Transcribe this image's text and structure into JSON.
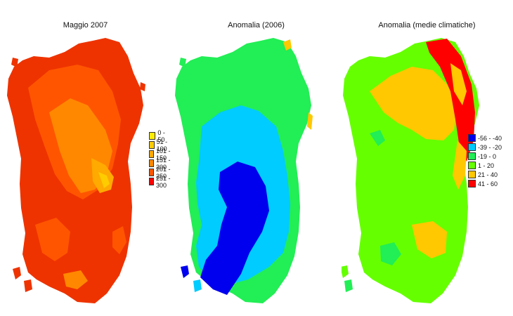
{
  "panels": [
    {
      "title": "Maggio 2007",
      "base_color": "#ee3300",
      "palette": [
        "#ffee00",
        "#ffcc00",
        "#ffaa00",
        "#ff8800",
        "#ff5500",
        "#ff0000"
      ],
      "legend": [
        {
          "label": "0 - 50",
          "color": "#ffee00"
        },
        {
          "label": "51 - 100",
          "color": "#ffcc00"
        },
        {
          "label": "101 - 150",
          "color": "#ffaa00"
        },
        {
          "label": "151 - 200",
          "color": "#ff8800"
        },
        {
          "label": "201 - 250",
          "color": "#ff5500"
        },
        {
          "label": "251 - 300",
          "color": "#ff0000"
        }
      ]
    },
    {
      "title": "Anomalia (2006)",
      "base_color": "#22ee55",
      "palette": [
        "#0000ee",
        "#00ccff",
        "#22ee55",
        "#66ff00",
        "#ffc800",
        "#ff0000"
      ],
      "legend": []
    },
    {
      "title": "Anomalia (medie climatiche)",
      "base_color": "#66ff00",
      "palette": [
        "#0000ee",
        "#00ccff",
        "#22ee55",
        "#66ff00",
        "#ffc800",
        "#ff0000"
      ],
      "legend": [
        {
          "label": "-56 - -40",
          "color": "#0000ee"
        },
        {
          "label": "-39 - -20",
          "color": "#00ccff"
        },
        {
          "label": "-19 - 0",
          "color": "#22ee55"
        },
        {
          "label": "1 - 20",
          "color": "#66ff00"
        },
        {
          "label": "21 - 40",
          "color": "#ffc800"
        },
        {
          "label": "41 - 60",
          "color": "#ff0000"
        }
      ]
    }
  ]
}
